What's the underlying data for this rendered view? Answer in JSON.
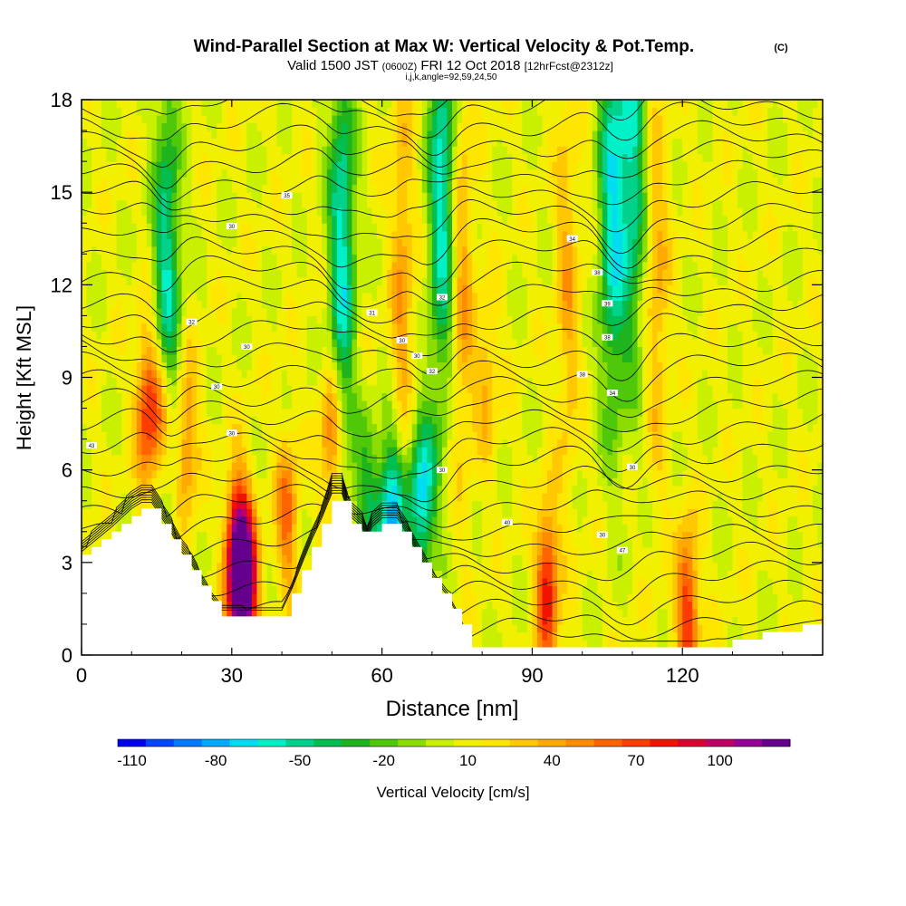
{
  "chart_data": {
    "type": "heatmap",
    "title": "Wind-Parallel Section at Max W: Vertical Velocity & Pot.Temp.",
    "title_mark": "(C)",
    "subtitle": {
      "valid": "Valid 1500 JST",
      "utc": "(0600Z)",
      "date": "FRI 12 Oct 2018",
      "fcst": "[12hrFcst@2312z]"
    },
    "section_params": "i,j,k,angle=92,59,24,50",
    "xlabel": "Distance [nm]",
    "ylabel": "Height [Kft MSL]",
    "xlim": [
      0,
      148
    ],
    "ylim": [
      0,
      18
    ],
    "x_ticks": [
      0,
      30,
      60,
      90,
      120
    ],
    "y_ticks": [
      0,
      3,
      6,
      9,
      12,
      15,
      18
    ],
    "colorbar": {
      "label": "Vertical Velocity [cm/s]",
      "min": -115,
      "max": 125,
      "tick_labels": [
        -110,
        -80,
        -50,
        -20,
        10,
        40,
        70,
        100
      ],
      "colors": [
        "#0000f0",
        "#0046ff",
        "#0078ff",
        "#00aaff",
        "#00dcf0",
        "#00f0c8",
        "#00d28c",
        "#00be50",
        "#1eb41e",
        "#50c80a",
        "#8cdc00",
        "#c8f000",
        "#f0f000",
        "#ffe600",
        "#ffc800",
        "#ffaa00",
        "#ff8c00",
        "#ff6400",
        "#ff3c00",
        "#f01400",
        "#dc0032",
        "#be0064",
        "#960096",
        "#64008c"
      ]
    },
    "updrafts": [
      {
        "x": 13,
        "z": 8.0,
        "w": 60
      },
      {
        "x": 16,
        "z": 7.8,
        "w": 55
      },
      {
        "x": 21,
        "z": 7.0,
        "w": 45
      },
      {
        "x": 31,
        "z": 3.0,
        "w": 115
      },
      {
        "x": 33,
        "z": 2.2,
        "w": 100
      },
      {
        "x": 41,
        "z": 4.5,
        "w": 50
      },
      {
        "x": 50,
        "z": 7.0,
        "w": 55
      },
      {
        "x": 64,
        "z": 12.0,
        "w": 35
      },
      {
        "x": 76,
        "z": 12.0,
        "w": 35
      },
      {
        "x": 81,
        "z": 9.0,
        "w": 30
      },
      {
        "x": 93,
        "z": 2.2,
        "w": 75
      },
      {
        "x": 97,
        "z": 12.0,
        "w": 30
      },
      {
        "x": 121,
        "z": 1.5,
        "w": 70
      },
      {
        "x": 115,
        "z": 12.0,
        "w": 30
      }
    ],
    "downdrafts": [
      {
        "x": 17,
        "z": 12.0,
        "w": -65
      },
      {
        "x": 52,
        "z": 13.0,
        "w": -70
      },
      {
        "x": 62,
        "z": 4.5,
        "w": -90
      },
      {
        "x": 68,
        "z": 5.2,
        "w": -80
      },
      {
        "x": 72,
        "z": 15.0,
        "w": -70
      },
      {
        "x": 106,
        "z": 14.5,
        "w": -70
      },
      {
        "x": 110,
        "z": 16.0,
        "w": -60
      },
      {
        "x": 57,
        "z": 5.0,
        "w": -40
      }
    ],
    "terrain": [
      {
        "x": 0,
        "z": 3.2
      },
      {
        "x": 3,
        "z": 3.6
      },
      {
        "x": 6,
        "z": 4.0
      },
      {
        "x": 8,
        "z": 4.3
      },
      {
        "x": 10,
        "z": 4.6
      },
      {
        "x": 12,
        "z": 4.8
      },
      {
        "x": 14,
        "z": 4.8
      },
      {
        "x": 16,
        "z": 4.3
      },
      {
        "x": 18,
        "z": 3.8
      },
      {
        "x": 20,
        "z": 3.2
      },
      {
        "x": 22,
        "z": 2.8
      },
      {
        "x": 24,
        "z": 2.2
      },
      {
        "x": 26,
        "z": 1.7
      },
      {
        "x": 28,
        "z": 1.3
      },
      {
        "x": 32,
        "z": 1.3
      },
      {
        "x": 36,
        "z": 1.3
      },
      {
        "x": 40,
        "z": 1.3
      },
      {
        "x": 42,
        "z": 2.0
      },
      {
        "x": 44,
        "z": 2.8
      },
      {
        "x": 46,
        "z": 3.6
      },
      {
        "x": 48,
        "z": 4.3
      },
      {
        "x": 50,
        "z": 5.1
      },
      {
        "x": 52,
        "z": 5.1
      },
      {
        "x": 53,
        "z": 4.6
      },
      {
        "x": 54,
        "z": 4.3
      },
      {
        "x": 56,
        "z": 4.0
      },
      {
        "x": 57,
        "z": 3.6
      },
      {
        "x": 58,
        "z": 4.0
      },
      {
        "x": 60,
        "z": 4.3
      },
      {
        "x": 63,
        "z": 4.3
      },
      {
        "x": 65,
        "z": 3.8
      },
      {
        "x": 67,
        "z": 3.2
      },
      {
        "x": 70,
        "z": 2.4
      },
      {
        "x": 73,
        "z": 1.8
      },
      {
        "x": 75,
        "z": 1.2
      },
      {
        "x": 77,
        "z": 0.6
      },
      {
        "x": 78,
        "z": 0.3
      },
      {
        "x": 92,
        "z": 0.3
      },
      {
        "x": 110,
        "z": 0.3
      },
      {
        "x": 127,
        "z": 0.3
      },
      {
        "x": 134,
        "z": 0.6
      },
      {
        "x": 144,
        "z": 0.9
      },
      {
        "x": 148,
        "z": 1.0
      }
    ],
    "isentrope_labels": [
      {
        "x": 2,
        "z": 6.8,
        "text": "43"
      },
      {
        "x": 22,
        "z": 10.8,
        "text": "32"
      },
      {
        "x": 30,
        "z": 7.2,
        "text": "30"
      },
      {
        "x": 30,
        "z": 13.9,
        "text": "30"
      },
      {
        "x": 27,
        "z": 8.7,
        "text": "30"
      },
      {
        "x": 33,
        "z": 10.0,
        "text": "30"
      },
      {
        "x": 41,
        "z": 14.9,
        "text": "35"
      },
      {
        "x": 58,
        "z": 11.1,
        "text": "31"
      },
      {
        "x": 64,
        "z": 10.2,
        "text": "30"
      },
      {
        "x": 67,
        "z": 9.7,
        "text": "30"
      },
      {
        "x": 70,
        "z": 9.2,
        "text": "32"
      },
      {
        "x": 72,
        "z": 11.6,
        "text": "32"
      },
      {
        "x": 72,
        "z": 6.0,
        "text": "30"
      },
      {
        "x": 85,
        "z": 4.3,
        "text": "40"
      },
      {
        "x": 98,
        "z": 13.5,
        "text": "34"
      },
      {
        "x": 100,
        "z": 9.1,
        "text": "38"
      },
      {
        "x": 103,
        "z": 12.4,
        "text": "38"
      },
      {
        "x": 105,
        "z": 11.4,
        "text": "39"
      },
      {
        "x": 105,
        "z": 10.3,
        "text": "38"
      },
      {
        "x": 106,
        "z": 8.5,
        "text": "34"
      },
      {
        "x": 108,
        "z": 3.4,
        "text": "47"
      },
      {
        "x": 110,
        "z": 6.1,
        "text": "30"
      },
      {
        "x": 104,
        "z": 3.9,
        "text": "30"
      }
    ]
  }
}
